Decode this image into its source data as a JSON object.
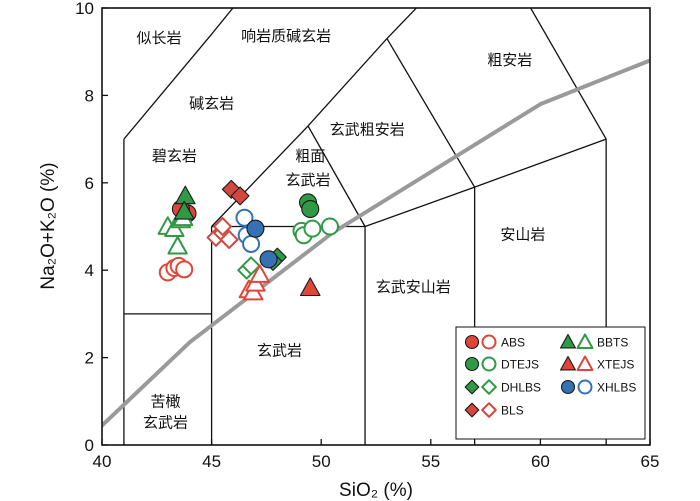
{
  "chart_data": {
    "type": "scatter",
    "xlabel": "SiO₂ (%)",
    "ylabel": "Na₂O+K₂O (%)",
    "xlim": [
      40,
      65
    ],
    "ylim": [
      0,
      10
    ],
    "xticks": [
      40,
      45,
      50,
      55,
      60,
      65
    ],
    "yticks": [
      0,
      2,
      4,
      6,
      8,
      10
    ],
    "field_labels": [
      {
        "text": "似长岩",
        "x": 42.6,
        "y": 9.2
      },
      {
        "text": "响岩质碱玄岩",
        "x": 48.4,
        "y": 9.25
      },
      {
        "text": "粗安岩",
        "x": 58.6,
        "y": 8.7
      },
      {
        "text": "碱玄岩",
        "x": 45.0,
        "y": 7.7
      },
      {
        "text": "玄武粗安岩",
        "x": 52.1,
        "y": 7.1
      },
      {
        "text": "碧玄岩",
        "x": 43.3,
        "y": 6.5
      },
      {
        "text": "粗面",
        "x": 49.5,
        "y": 6.5
      },
      {
        "text": "玄武岩",
        "x": 49.4,
        "y": 5.95
      },
      {
        "text": "安山岩",
        "x": 59.2,
        "y": 4.7
      },
      {
        "text": "玄武安山岩",
        "x": 54.2,
        "y": 3.5
      },
      {
        "text": "玄武岩",
        "x": 48.1,
        "y": 2.05
      },
      {
        "text": "苦橄",
        "x": 42.9,
        "y": 0.88
      },
      {
        "text": "玄武岩",
        "x": 42.9,
        "y": 0.4
      }
    ],
    "series": [
      {
        "name": "ABS",
        "marker": "circle",
        "color": "#e0453a",
        "filled": [
          [
            43.9,
            5.3
          ],
          [
            43.6,
            5.4
          ]
        ],
        "open": [
          [
            43.0,
            3.95
          ],
          [
            43.3,
            4.05
          ],
          [
            43.5,
            4.1
          ],
          [
            43.75,
            4.02
          ]
        ]
      },
      {
        "name": "BBTS",
        "marker": "triangle",
        "color": "#2f9a46",
        "filled": [
          [
            43.8,
            5.7
          ],
          [
            43.75,
            5.35
          ]
        ],
        "open": [
          [
            43.0,
            5.0
          ],
          [
            43.3,
            4.95
          ],
          [
            43.45,
            4.55
          ],
          [
            43.6,
            5.15
          ],
          [
            43.7,
            5.2
          ]
        ]
      },
      {
        "name": "DTEJS",
        "marker": "circle",
        "color": "#2f9a46",
        "filled": [
          [
            49.4,
            5.55
          ],
          [
            49.5,
            5.4
          ]
        ],
        "open": [
          [
            49.1,
            4.9
          ],
          [
            49.2,
            4.8
          ],
          [
            49.6,
            4.95
          ],
          [
            50.4,
            5.0
          ]
        ]
      },
      {
        "name": "XTEJS",
        "marker": "triangle",
        "color": "#e0453a",
        "filled": [
          [
            49.5,
            3.6
          ]
        ],
        "open": [
          [
            46.7,
            3.55
          ],
          [
            46.9,
            3.5
          ],
          [
            47.0,
            3.7
          ],
          [
            47.2,
            3.9
          ]
        ]
      },
      {
        "name": "DHLBS",
        "marker": "diamond",
        "color": "#2f9a46",
        "filled": [
          [
            48.0,
            4.3
          ],
          [
            47.8,
            4.2
          ]
        ],
        "open": [
          [
            46.6,
            4.0
          ],
          [
            46.8,
            4.1
          ]
        ]
      },
      {
        "name": "XHLBS",
        "marker": "circle",
        "color": "#3571b5",
        "filled": [
          [
            47.0,
            4.95
          ],
          [
            47.6,
            4.25
          ]
        ],
        "open": [
          [
            46.5,
            5.2
          ],
          [
            46.6,
            4.8
          ],
          [
            46.8,
            4.6
          ]
        ]
      },
      {
        "name": "BLS",
        "marker": "diamond",
        "color": "#d2483f",
        "filled": [
          [
            45.9,
            5.85
          ],
          [
            46.3,
            5.7
          ]
        ],
        "open": [
          [
            45.2,
            4.75
          ],
          [
            45.5,
            4.85
          ],
          [
            45.8,
            4.7
          ],
          [
            45.5,
            5.0
          ]
        ]
      }
    ],
    "legend": {
      "placement": "bottom-right",
      "items": [
        {
          "label": "ABS",
          "series": "ABS"
        },
        {
          "label": "BBTS",
          "series": "BBTS"
        },
        {
          "label": "DTEJS",
          "series": "DTEJS"
        },
        {
          "label": "XTEJS",
          "series": "XTEJS"
        },
        {
          "label": "DHLBS",
          "series": "DHLBS"
        },
        {
          "label": "XHLBS",
          "series": "XHLBS"
        },
        {
          "label": "BLS",
          "series": "BLS"
        }
      ]
    },
    "field_boundaries": [
      [
        [
          41,
          0
        ],
        [
          41,
          7
        ]
      ],
      [
        [
          41,
          7
        ],
        [
          45,
          9.4
        ]
      ],
      [
        [
          45,
          9.4
        ],
        [
          48.4,
          11.5
        ]
      ],
      [
        [
          48.4,
          11.5
        ],
        [
          52.5,
          14
        ]
      ],
      [
        [
          41,
          3
        ],
        [
          45,
          3
        ]
      ],
      [
        [
          45,
          0
        ],
        [
          45,
          5
        ]
      ],
      [
        [
          45,
          5
        ],
        [
          49.4,
          7.3
        ]
      ],
      [
        [
          49.4,
          7.3
        ],
        [
          53,
          9.3
        ]
      ],
      [
        [
          53,
          9.3
        ],
        [
          57.6,
          11.7
        ]
      ],
      [
        [
          45,
          5
        ],
        [
          52,
          5
        ]
      ],
      [
        [
          52,
          0
        ],
        [
          52,
          5
        ]
      ],
      [
        [
          52,
          5
        ],
        [
          57,
          5.9
        ]
      ],
      [
        [
          57,
          0
        ],
        [
          57,
          5.9
        ]
      ],
      [
        [
          57,
          5.9
        ],
        [
          63,
          7
        ]
      ],
      [
        [
          63,
          0
        ],
        [
          63,
          7
        ]
      ],
      [
        [
          52,
          5
        ],
        [
          49.4,
          7.3
        ]
      ],
      [
        [
          57,
          5.9
        ],
        [
          53,
          9.3
        ]
      ],
      [
        [
          63,
          7
        ],
        [
          57.6,
          11.7
        ]
      ]
    ],
    "gray_curve": [
      [
        39.8,
        0.35
      ],
      [
        44,
        2.35
      ],
      [
        50.5,
        4.85
      ],
      [
        60,
        7.8
      ],
      [
        65,
        8.8
      ]
    ],
    "colors": {
      "red": "#e0453a",
      "green": "#2f9a46",
      "blue": "#3571b5",
      "curve": "#9a9a9a"
    }
  }
}
